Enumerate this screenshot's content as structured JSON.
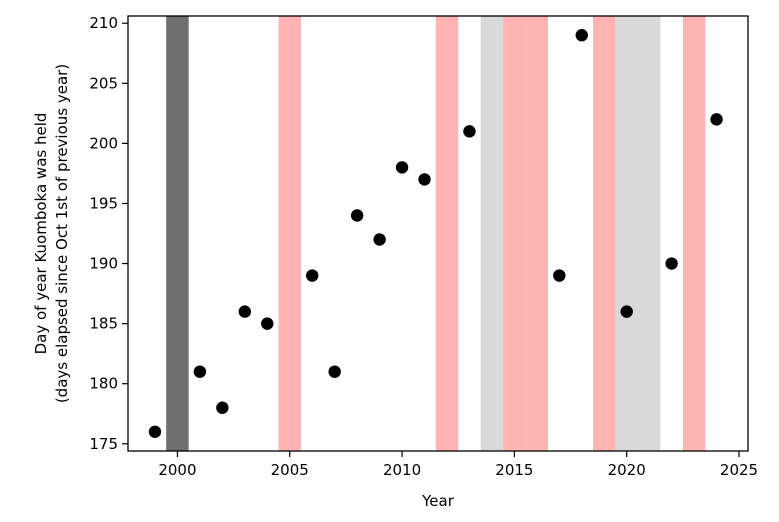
{
  "chart_data": {
    "type": "scatter",
    "title": "",
    "xlabel": "Year",
    "ylabel": [
      "Day of year Kuomboka was held",
      "(days elapsed since Oct 1st of previous year)"
    ],
    "xlim": [
      1997.8,
      2025.4
    ],
    "ylim": [
      174.4,
      210.6
    ],
    "xticks": [
      2000,
      2005,
      2010,
      2015,
      2020,
      2025
    ],
    "yticks": [
      175,
      180,
      185,
      190,
      195,
      200,
      205,
      210
    ],
    "grid": false,
    "point_color": "#000000",
    "series": [
      {
        "x": [
          1999,
          2001,
          2002,
          2003,
          2004,
          2006,
          2007,
          2008,
          2009,
          2010,
          2011,
          2013,
          2017,
          2018,
          2020,
          2022,
          2024
        ],
        "y": [
          176,
          181,
          178,
          186,
          185,
          189,
          181,
          194,
          192,
          198,
          197,
          201,
          189,
          209,
          186,
          190,
          202
        ]
      }
    ],
    "shaded_years": [
      {
        "year": 2000,
        "color": "#707070"
      },
      {
        "year": 2005,
        "color": "#ffb3b3"
      },
      {
        "year": 2012,
        "color": "#ffb3b3"
      },
      {
        "year": 2014,
        "color": "#d9d9d9"
      },
      {
        "year": 2015,
        "color": "#ffb3b3"
      },
      {
        "year": 2016,
        "color": "#ffb3b3"
      },
      {
        "year": 2019,
        "color": "#ffb3b3"
      },
      {
        "year": 2020,
        "color": "#d9d9d9"
      },
      {
        "year": 2021,
        "color": "#d9d9d9"
      },
      {
        "year": 2023,
        "color": "#ffb3b3"
      }
    ]
  }
}
